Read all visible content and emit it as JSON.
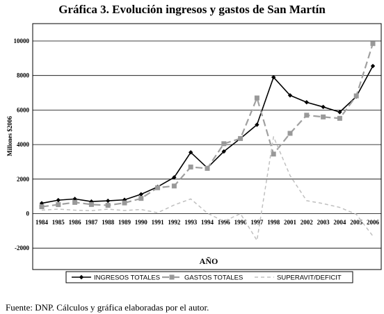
{
  "chart_data": {
    "type": "line",
    "title": "Gráfica 3. Evolución ingresos y gastos de San Martín",
    "xlabel": "AÑO",
    "ylabel": "Millones $2006",
    "ylim": [
      -2000,
      11000
    ],
    "yticks": [
      "-2000",
      "0",
      "2000",
      "4000",
      "6000",
      "8000",
      "10000"
    ],
    "categories": [
      "1984",
      "1985",
      "1986",
      "1987",
      "1988",
      "1989",
      "1990",
      "1991",
      "1992",
      "1993",
      "1994",
      "1996",
      "1996",
      "1997",
      "1998",
      "2001",
      "2002",
      "2003",
      "2004",
      "2005",
      "2006"
    ],
    "series": [
      {
        "name": "INGRESOS TOTALES",
        "color": "#000000",
        "values": [
          600,
          780,
          850,
          700,
          740,
          800,
          1120,
          1550,
          2100,
          3550,
          2650,
          3600,
          4350,
          5150,
          7900,
          6850,
          6450,
          6180,
          5880,
          6780,
          8550
        ]
      },
      {
        "name": "GASTOS TOTALES",
        "color": "#a0a0a0",
        "values": [
          400,
          520,
          650,
          530,
          480,
          620,
          880,
          1500,
          1600,
          2700,
          2620,
          4050,
          4350,
          6700,
          3450,
          4650,
          5700,
          5600,
          5520,
          6820,
          9850
        ]
      },
      {
        "name": "SUPERAVIT/DEFICIT",
        "color": "#c0c0c0",
        "values": [
          200,
          260,
          200,
          170,
          260,
          180,
          240,
          50,
          500,
          850,
          30,
          -450,
          0,
          -1550,
          4450,
          2200,
          750,
          580,
          360,
          -40,
          -1300
        ]
      }
    ],
    "grid": true,
    "legend_position": "bottom"
  },
  "source": "Fuente: DNP. Cálculos y gráfica elaboradas por el autor."
}
